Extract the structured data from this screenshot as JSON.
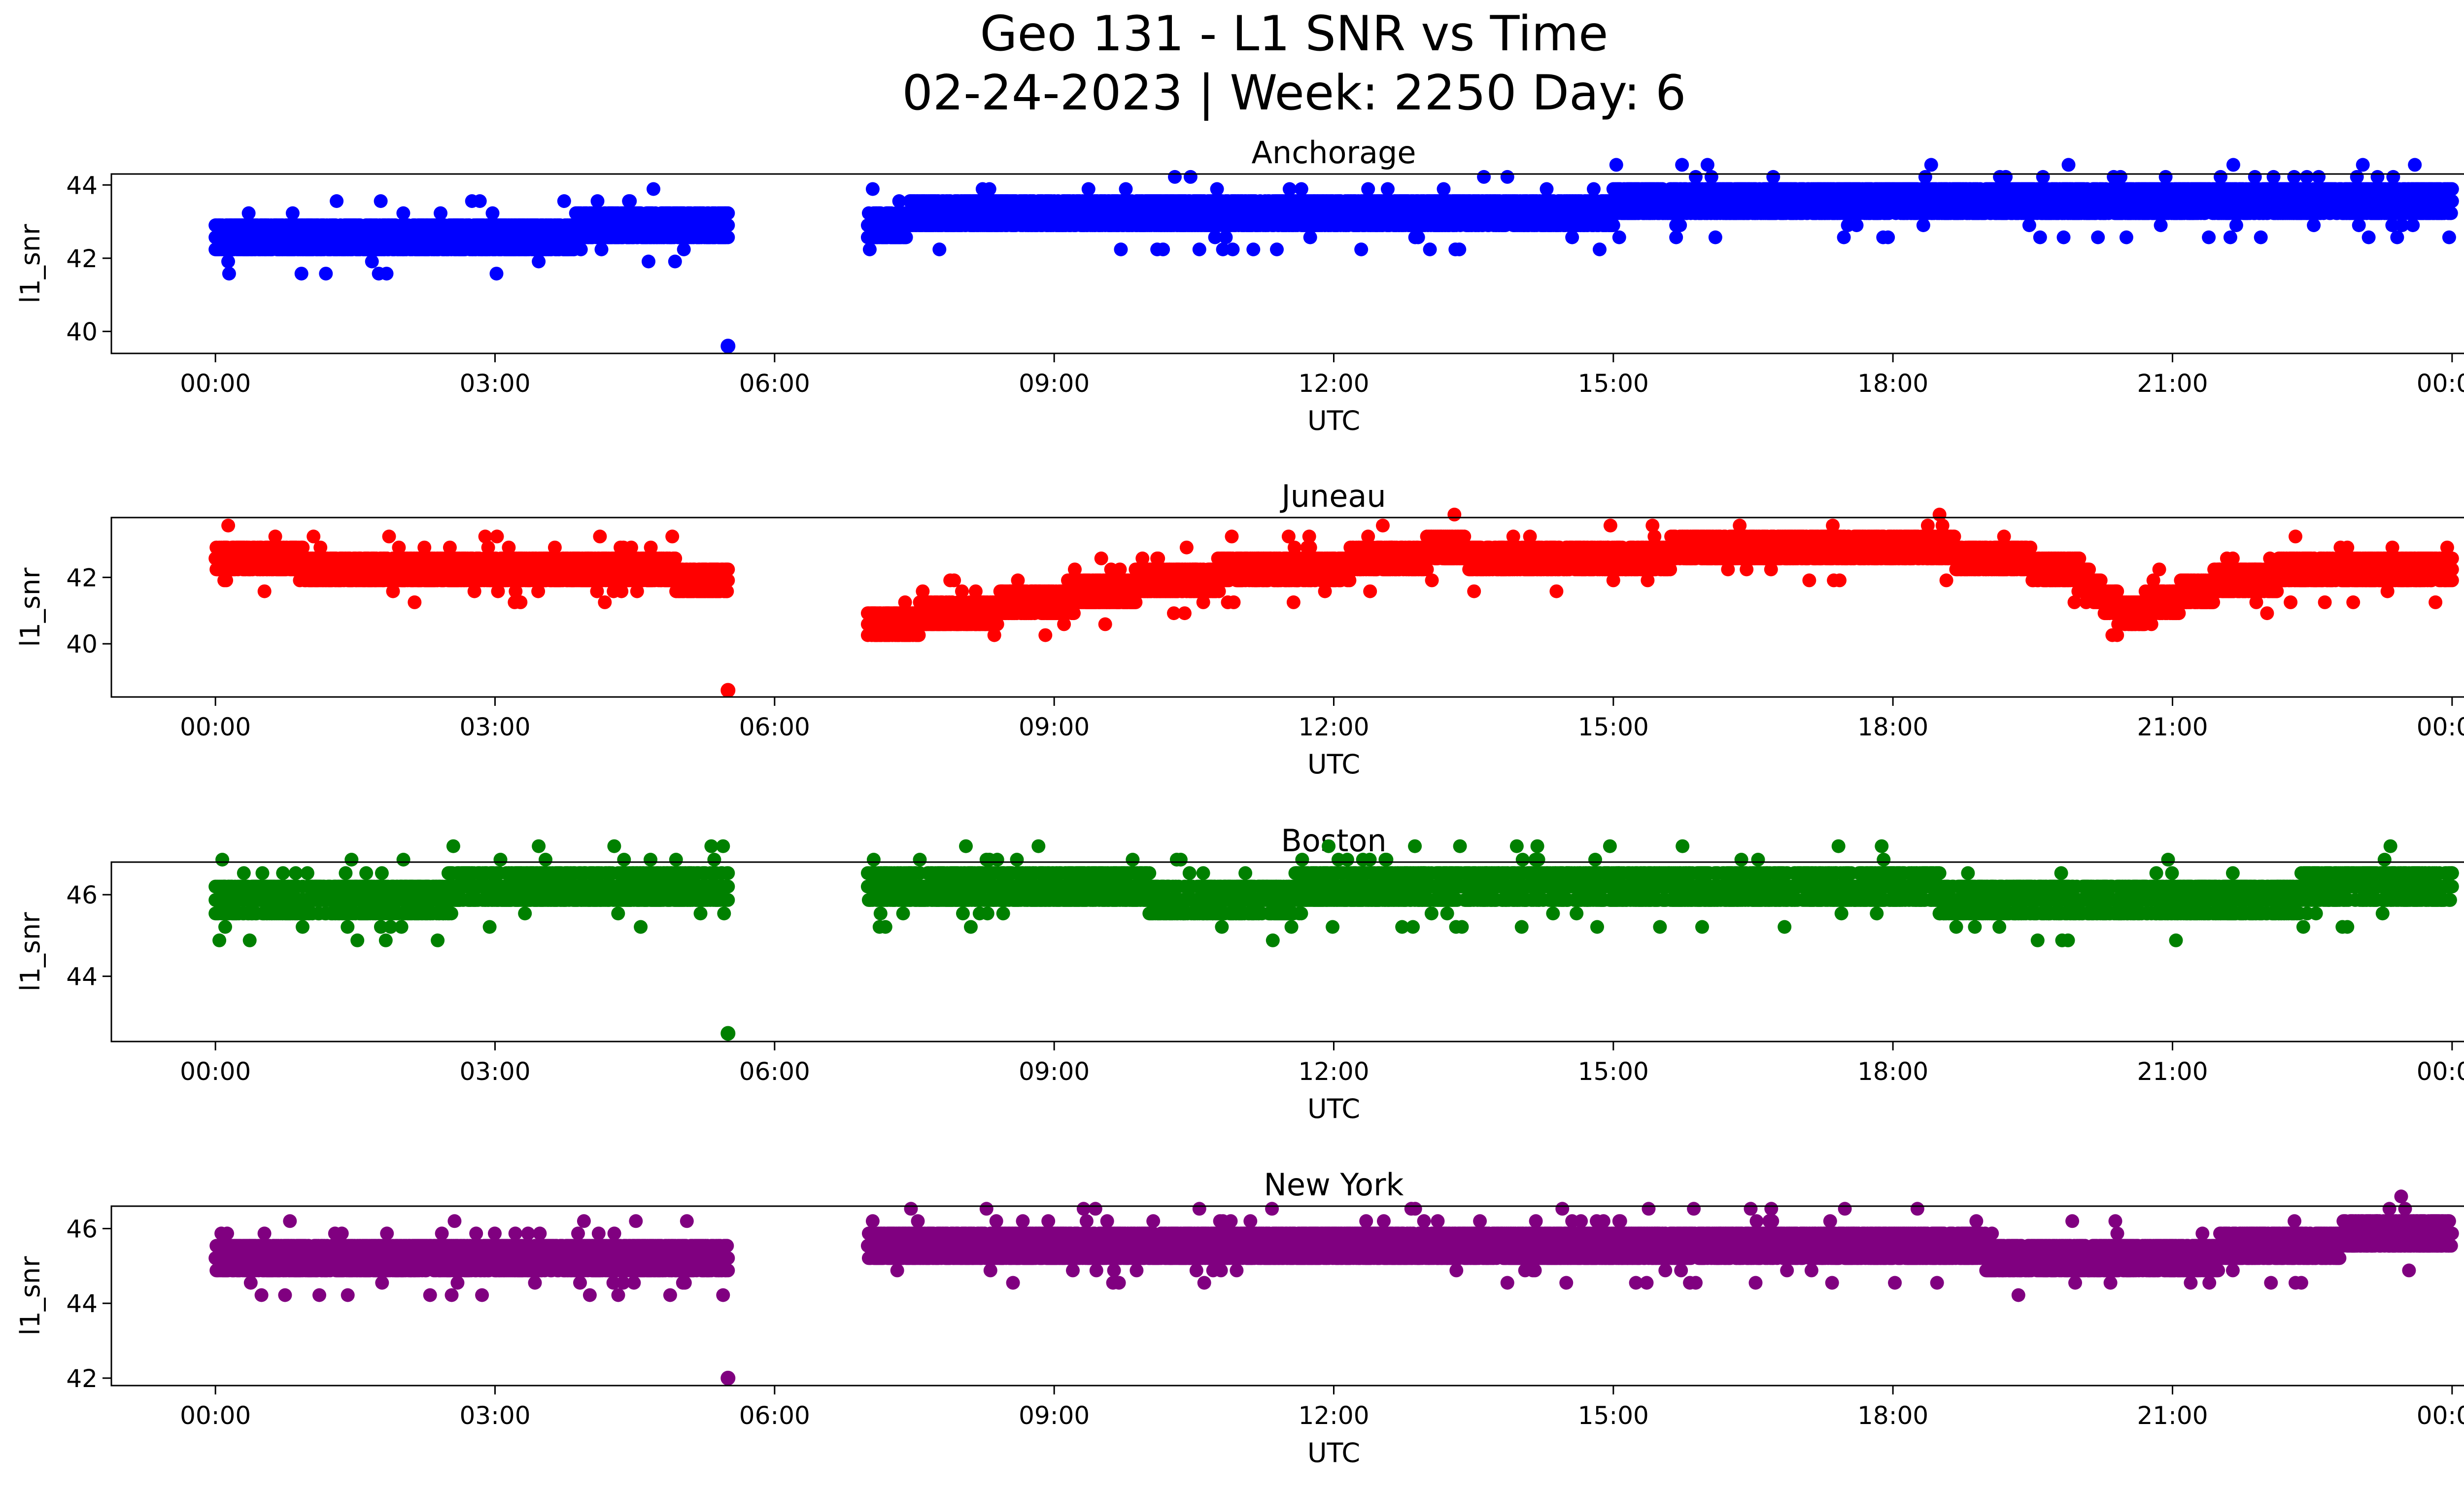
{
  "figure": {
    "title_line1": "Geo 131 - L1 SNR vs Time",
    "title_line2": "02-24-2023 | Week: 2250 Day: 6"
  },
  "chart_data": [
    {
      "type": "scatter",
      "title": "Anchorage",
      "xlabel": "UTC",
      "ylabel": "l1_snr",
      "color": "#0000ff",
      "xlim": [
        "-01:07",
        "25:07"
      ],
      "x_ticks": [
        "00:00",
        "03:00",
        "06:00",
        "09:00",
        "12:00",
        "15:00",
        "18:00",
        "21:00",
        "00:00"
      ],
      "ylim": [
        39.4,
        44.3
      ],
      "y_ticks": [
        40,
        42,
        44
      ],
      "outliers": [
        {
          "x": "05:30",
          "y": 39.6
        }
      ],
      "segments": [
        {
          "t0": "00:00",
          "t1": "01:30",
          "y0": 42.6,
          "y1": 42.7
        },
        {
          "t0": "01:30",
          "t1": "03:30",
          "y0": 42.6,
          "y1": 42.6
        },
        {
          "t0": "03:30",
          "t1": "05:30",
          "y0": 42.7,
          "y1": 42.9
        },
        {
          "t0": "07:00",
          "t1": "09:00",
          "y0": 43.0,
          "y1": 43.3
        },
        {
          "t0": "09:00",
          "t1": "15:00",
          "y0": 43.3,
          "y1": 43.3
        },
        {
          "t0": "15:00",
          "t1": "24:00",
          "y0": 43.5,
          "y1": 43.5
        }
      ]
    },
    {
      "type": "scatter",
      "title": "Juneau",
      "xlabel": "UTC",
      "ylabel": "l1_snr",
      "color": "#ff0000",
      "xlim": [
        "-01:07",
        "25:07"
      ],
      "x_ticks": [
        "00:00",
        "03:00",
        "06:00",
        "09:00",
        "12:00",
        "15:00",
        "18:00",
        "21:00",
        "00:00"
      ],
      "ylim": [
        38.4,
        43.8
      ],
      "y_ticks": [
        40,
        42
      ],
      "outliers": [
        {
          "x": "05:30",
          "y": 38.6
        }
      ],
      "segments": [
        {
          "t0": "00:00",
          "t1": "02:00",
          "y0": 42.5,
          "y1": 42.3
        },
        {
          "t0": "02:00",
          "t1": "04:00",
          "y0": 42.3,
          "y1": 42.3
        },
        {
          "t0": "04:00",
          "t1": "05:30",
          "y0": 42.2,
          "y1": 42.0
        },
        {
          "t0": "07:00",
          "t1": "08:00",
          "y0": 40.7,
          "y1": 40.8
        },
        {
          "t0": "08:00",
          "t1": "10:00",
          "y0": 40.9,
          "y1": 41.8
        },
        {
          "t0": "10:00",
          "t1": "13:00",
          "y0": 41.9,
          "y1": 42.6
        },
        {
          "t0": "13:00",
          "t1": "15:00",
          "y0": 42.8,
          "y1": 42.5
        },
        {
          "t0": "15:00",
          "t1": "18:30",
          "y0": 42.7,
          "y1": 42.9
        },
        {
          "t0": "18:30",
          "t1": "20:00",
          "y0": 42.8,
          "y1": 42.2
        },
        {
          "t0": "20:00",
          "t1": "20:30",
          "y0": 42.0,
          "y1": 40.9
        },
        {
          "t0": "20:30",
          "t1": "21:30",
          "y0": 40.9,
          "y1": 41.8
        },
        {
          "t0": "21:30",
          "t1": "24:00",
          "y0": 42.0,
          "y1": 42.3
        }
      ]
    },
    {
      "type": "scatter",
      "title": "Boston",
      "xlabel": "UTC",
      "ylabel": "l1_snr",
      "color": "#008000",
      "xlim": [
        "-01:07",
        "25:07"
      ],
      "x_ticks": [
        "00:00",
        "03:00",
        "06:00",
        "09:00",
        "12:00",
        "15:00",
        "18:00",
        "21:00",
        "00:00"
      ],
      "ylim": [
        42.4,
        46.8
      ],
      "y_ticks": [
        44,
        46
      ],
      "outliers": [
        {
          "x": "05:30",
          "y": 42.6
        }
      ],
      "segments": [
        {
          "t0": "00:00",
          "t1": "02:30",
          "y0": 45.9,
          "y1": 45.9
        },
        {
          "t0": "02:30",
          "t1": "05:30",
          "y0": 46.1,
          "y1": 46.1
        },
        {
          "t0": "07:00",
          "t1": "10:00",
          "y0": 46.2,
          "y1": 46.1
        },
        {
          "t0": "10:00",
          "t1": "14:30",
          "y0": 46.0,
          "y1": 46.1
        },
        {
          "t0": "14:30",
          "t1": "18:30",
          "y0": 46.3,
          "y1": 46.3
        },
        {
          "t0": "18:30",
          "t1": "21:30",
          "y0": 46.0,
          "y1": 45.9
        },
        {
          "t0": "21:30",
          "t1": "24:00",
          "y0": 46.0,
          "y1": 46.1
        }
      ]
    },
    {
      "type": "scatter",
      "title": "New York",
      "xlabel": "UTC",
      "ylabel": "l1_snr",
      "color": "#800080",
      "xlim": [
        "-01:07",
        "25:07"
      ],
      "x_ticks": [
        "00:00",
        "03:00",
        "06:00",
        "09:00",
        "12:00",
        "15:00",
        "18:00",
        "21:00",
        "00:00"
      ],
      "ylim": [
        41.8,
        46.6
      ],
      "y_ticks": [
        42,
        44,
        46
      ],
      "outliers": [
        {
          "x": "05:30",
          "y": 42.0
        }
      ],
      "segments": [
        {
          "t0": "00:00",
          "t1": "05:30",
          "y0": 45.3,
          "y1": 45.3
        },
        {
          "t0": "07:00",
          "t1": "14:00",
          "y0": 45.4,
          "y1": 45.4
        },
        {
          "t0": "14:00",
          "t1": "19:00",
          "y0": 45.6,
          "y1": 45.6
        },
        {
          "t0": "19:00",
          "t1": "21:30",
          "y0": 45.3,
          "y1": 45.2
        },
        {
          "t0": "21:30",
          "t1": "24:00",
          "y0": 45.6,
          "y1": 45.8
        }
      ]
    }
  ]
}
